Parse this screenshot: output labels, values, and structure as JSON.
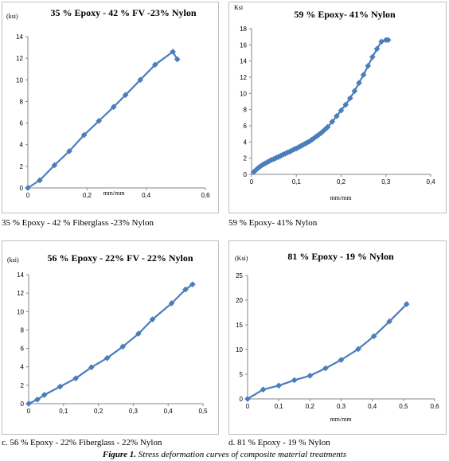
{
  "charts": [
    {
      "caption": "35 % Epoxy - 42 % Fiberglass -23% Nylon",
      "chart_data": {
        "type": "line",
        "title": "35 % Epoxy - 42 % FV -23% Nylon",
        "ylabel": "(ksi)",
        "xlabel": "mm/mm",
        "xlim": [
          0,
          0.6
        ],
        "ylim": [
          0,
          14
        ],
        "xticks": [
          "0",
          "0,2",
          "0,4",
          "0,6"
        ],
        "yticks": [
          "0",
          "2",
          "4",
          "6",
          "8",
          "10",
          "12",
          "14"
        ],
        "series": [
          {
            "x": [
              0,
              0.04,
              0.09,
              0.14,
              0.19,
              0.24,
              0.29,
              0.33,
              0.38,
              0.43,
              0.49,
              0.505
            ],
            "y": [
              0,
              0.7,
              2.1,
              3.4,
              4.9,
              6.2,
              7.5,
              8.6,
              10.0,
              11.4,
              12.6,
              11.9
            ]
          }
        ],
        "color": "#4a7ebb"
      }
    },
    {
      "caption": "59 % Epoxy- 41% Nylon",
      "chart_data": {
        "type": "line",
        "title": "59 % Epoxy- 41% Nylon",
        "ylabel": "Ksi",
        "xlabel": "mm/mm",
        "xlim": [
          0,
          0.4
        ],
        "ylim": [
          0,
          18
        ],
        "xticks": [
          "0",
          "0,1",
          "0,2",
          "0,3",
          "0,4"
        ],
        "yticks": [
          "0",
          "2",
          "4",
          "6",
          "8",
          "10",
          "12",
          "14",
          "16",
          "18"
        ],
        "series": [
          {
            "x": [
              0.005,
              0.01,
              0.015,
              0.02,
              0.025,
              0.03,
              0.035,
              0.04,
              0.045,
              0.05,
              0.055,
              0.06,
              0.065,
              0.07,
              0.075,
              0.08,
              0.085,
              0.09,
              0.095,
              0.1,
              0.105,
              0.11,
              0.115,
              0.12,
              0.125,
              0.13,
              0.135,
              0.14,
              0.145,
              0.15,
              0.155,
              0.16,
              0.165,
              0.17,
              0.18,
              0.19,
              0.2,
              0.21,
              0.22,
              0.23,
              0.24,
              0.25,
              0.26,
              0.27,
              0.28,
              0.29,
              0.3,
              0.305
            ],
            "y": [
              0.3,
              0.55,
              0.8,
              1.0,
              1.2,
              1.35,
              1.5,
              1.65,
              1.8,
              1.9,
              2.05,
              2.15,
              2.3,
              2.45,
              2.55,
              2.7,
              2.8,
              2.95,
              3.1,
              3.2,
              3.35,
              3.5,
              3.65,
              3.8,
              3.95,
              4.1,
              4.3,
              4.5,
              4.7,
              4.9,
              5.1,
              5.35,
              5.6,
              5.85,
              6.5,
              7.2,
              7.9,
              8.6,
              9.4,
              10.3,
              11.3,
              12.3,
              13.4,
              14.5,
              15.5,
              16.4,
              16.6,
              16.6
            ]
          }
        ],
        "color": "#4a7ebb"
      }
    },
    {
      "caption": "c. 56 % Epoxy - 22% Fiberglass - 22% Nylon",
      "chart_data": {
        "type": "line",
        "title": "56 % Epoxy - 22% FV - 22% Nylon",
        "ylabel": "(ksi)",
        "xlabel": "",
        "xlim": [
          0,
          0.5
        ],
        "ylim": [
          0,
          14
        ],
        "xticks": [
          "0",
          "0,1",
          "0,2",
          "0,3",
          "0,4",
          "0,5"
        ],
        "yticks": [
          "0",
          "2",
          "4",
          "6",
          "8",
          "10",
          "12",
          "14"
        ],
        "series": [
          {
            "x": [
              0,
              0.025,
              0.045,
              0.09,
              0.135,
              0.18,
              0.225,
              0.27,
              0.315,
              0.355,
              0.41,
              0.45,
              0.47
            ],
            "y": [
              0,
              0.45,
              0.95,
              1.85,
              2.75,
              3.95,
              4.95,
              6.2,
              7.6,
              9.15,
              10.9,
              12.4,
              12.95
            ]
          }
        ],
        "color": "#4a7ebb"
      }
    },
    {
      "caption": "d.  81 % Epoxy - 19 % Nylon",
      "chart_data": {
        "type": "line",
        "title": "81 % Epoxy - 19 % Nylon",
        "ylabel": "(Ksi)",
        "xlabel": "mm/mm",
        "xlim": [
          0,
          0.6
        ],
        "ylim": [
          0,
          25
        ],
        "xticks": [
          "0",
          "0,1",
          "0,2",
          "0,3",
          "0,4",
          "0,5",
          "0,6"
        ],
        "yticks": [
          "0",
          "5",
          "10",
          "15",
          "20",
          "25"
        ],
        "series": [
          {
            "x": [
              0,
              0.05,
              0.1,
              0.15,
              0.2,
              0.25,
              0.3,
              0.355,
              0.405,
              0.455,
              0.51
            ],
            "y": [
              0,
              1.9,
              2.7,
              3.8,
              4.7,
              6.2,
              7.9,
              10.1,
              12.7,
              15.7,
              19.2
            ]
          }
        ],
        "color": "#4a7ebb"
      }
    }
  ],
  "figure_caption": {
    "label": "Figure 1.",
    "text": " Stress deformation curves of composite material treatments"
  }
}
